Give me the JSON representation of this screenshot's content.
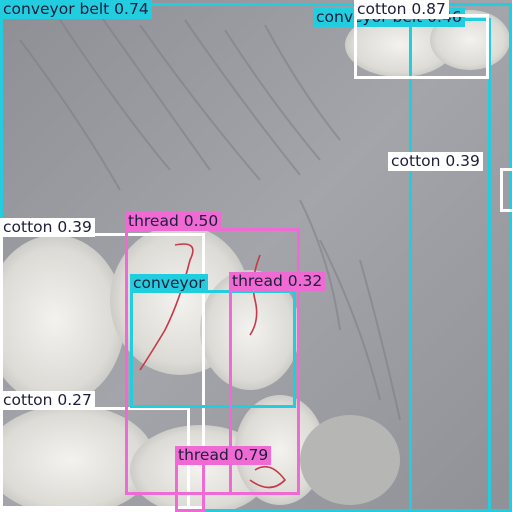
{
  "image": {
    "description_free": true,
    "colors": {
      "conveyor_belt": "#22cde0",
      "cotton": "#ffffff",
      "thread": "#f06ad4",
      "conveyor_label_text": "#1d1d3a",
      "cotton_label_text": "#1d1d3a",
      "thread_label_text": "#1d1d3a"
    }
  },
  "detections": [
    {
      "id": "conveyor-belt-1",
      "class": "conveyor",
      "label": "conveyor belt 0.74"
    },
    {
      "id": "conveyor-belt-2",
      "class": "conveyor",
      "label": "conveyor belt 0.46"
    },
    {
      "id": "conveyor-3",
      "class": "conveyor",
      "label": "conveyor"
    },
    {
      "id": "cotton-1",
      "class": "cotton",
      "label": "cotton 0.87"
    },
    {
      "id": "cotton-2",
      "class": "cotton",
      "label": "cotton 0.39"
    },
    {
      "id": "cotton-3",
      "class": "cotton",
      "label": "cotton 0.39"
    },
    {
      "id": "cotton-4",
      "class": "cotton",
      "label": "cotton 0.27"
    },
    {
      "id": "thread-1",
      "class": "thread",
      "label": "thread 0.50"
    },
    {
      "id": "thread-2",
      "class": "thread",
      "label": "thread 0.32"
    },
    {
      "id": "thread-3",
      "class": "thread",
      "label": "thread 0.79"
    }
  ]
}
